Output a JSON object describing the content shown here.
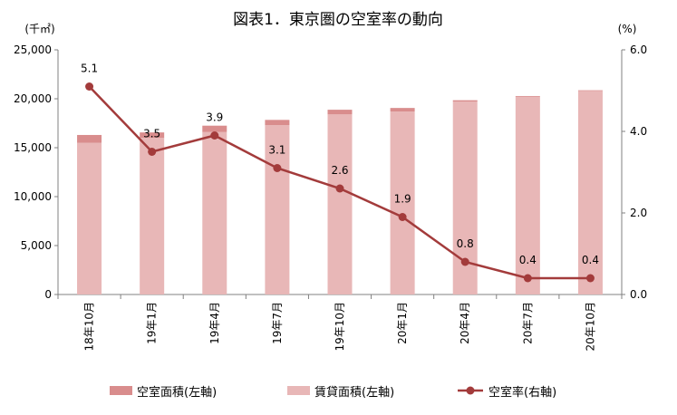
{
  "chart_data": {
    "type": "bar+line",
    "title": "図表1．東京圏の空室率の動向",
    "left_unit": "(千㎡)",
    "right_unit": "(%)",
    "categories": [
      "18年10月",
      "19年1月",
      "19年4月",
      "19年7月",
      "19年10月",
      "20年1月",
      "20年4月",
      "20年7月",
      "20年10月"
    ],
    "left_ylim": [
      0,
      25000
    ],
    "left_ticks": [
      "0",
      "5,000",
      "10,000",
      "15,000",
      "20,000",
      "25,000"
    ],
    "right_ylim": [
      0,
      6.0
    ],
    "right_ticks": [
      "0.0",
      "2.0",
      "4.0",
      "6.0"
    ],
    "series": [
      {
        "name": "空室面積(左軸)",
        "kind": "bar-stack-top",
        "color": "#d98d8d",
        "values": [
          800,
          560,
          650,
          540,
          480,
          360,
          150,
          80,
          70
        ]
      },
      {
        "name": "賃貸面積(左軸)",
        "kind": "bar",
        "color": "#e8b7b7",
        "values": [
          15500,
          16000,
          16600,
          17300,
          18400,
          18700,
          19700,
          20200,
          20800
        ]
      },
      {
        "name": "空室率(右軸)",
        "kind": "line",
        "color": "#a33b3b",
        "values": [
          5.1,
          3.5,
          3.9,
          3.1,
          2.6,
          1.9,
          0.8,
          0.4,
          0.4
        ],
        "labels": [
          "5.1",
          "3.5",
          "3.9",
          "3.1",
          "2.6",
          "1.9",
          "0.8",
          "0.4",
          "0.4"
        ]
      }
    ],
    "grid": false,
    "legend_position": "bottom"
  }
}
